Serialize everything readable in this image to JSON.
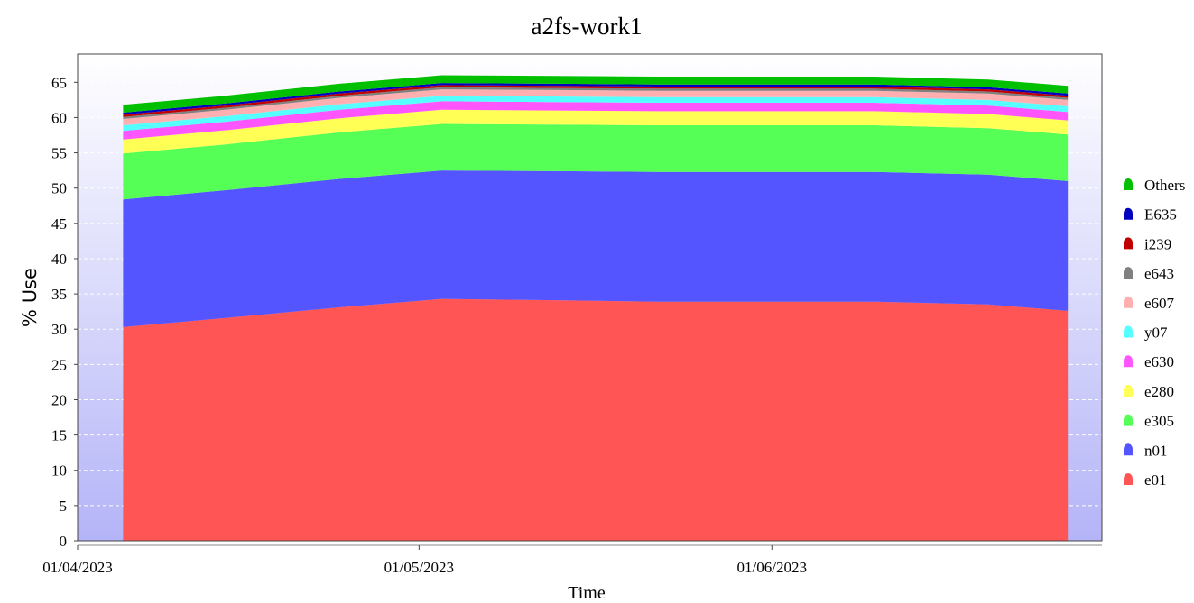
{
  "chart_data": {
    "type": "area",
    "stacked": true,
    "title": "a2fs-work1",
    "xlabel": "Time",
    "ylabel": "% Use",
    "ylim": [
      0,
      69
    ],
    "yticks": [
      0,
      5,
      10,
      15,
      20,
      25,
      30,
      35,
      40,
      45,
      50,
      55,
      60,
      65
    ],
    "xlim": [
      "2023-04-01",
      "2023-06-30"
    ],
    "xticks": [
      {
        "date": "2023-04-01",
        "label": "01/04/2023"
      },
      {
        "date": "2023-05-01",
        "label": "01/05/2023"
      },
      {
        "date": "2023-06-01",
        "label": "01/06/2023"
      }
    ],
    "grid": "horizontal-dashed",
    "legend_position": "right",
    "x": [
      "2023-04-05",
      "2023-04-14",
      "2023-04-24",
      "2023-05-03",
      "2023-05-13",
      "2023-05-22",
      "2023-06-01",
      "2023-06-10",
      "2023-06-20",
      "2023-06-27"
    ],
    "series": [
      {
        "name": "e01",
        "color": "#ff5555",
        "values": [
          30.3,
          31.6,
          33.1,
          34.3,
          34.1,
          33.9,
          33.9,
          33.9,
          33.5,
          32.6
        ]
      },
      {
        "name": "n01",
        "color": "#5555ff",
        "values": [
          18.1,
          18.1,
          18.2,
          18.2,
          18.3,
          18.4,
          18.4,
          18.4,
          18.4,
          18.4
        ]
      },
      {
        "name": "e305",
        "color": "#55ff55",
        "values": [
          6.5,
          6.5,
          6.6,
          6.6,
          6.6,
          6.6,
          6.6,
          6.6,
          6.6,
          6.6
        ]
      },
      {
        "name": "e280",
        "color": "#ffff55",
        "values": [
          2.0,
          2.0,
          2.0,
          2.0,
          2.0,
          2.0,
          2.0,
          2.0,
          2.0,
          2.0
        ]
      },
      {
        "name": "e630",
        "color": "#ff55ff",
        "values": [
          1.2,
          1.2,
          1.2,
          1.2,
          1.2,
          1.2,
          1.2,
          1.2,
          1.2,
          1.2
        ]
      },
      {
        "name": "y07",
        "color": "#55ffff",
        "values": [
          0.8,
          0.8,
          0.8,
          0.8,
          0.8,
          0.8,
          0.8,
          0.8,
          0.8,
          0.8
        ]
      },
      {
        "name": "e607",
        "color": "#ffafaf",
        "values": [
          0.9,
          0.9,
          0.9,
          0.9,
          0.9,
          0.9,
          0.9,
          0.9,
          0.9,
          0.9
        ]
      },
      {
        "name": "e643",
        "color": "#808080",
        "values": [
          0.3,
          0.3,
          0.3,
          0.3,
          0.3,
          0.3,
          0.3,
          0.3,
          0.3,
          0.3
        ]
      },
      {
        "name": "i239",
        "color": "#c00000",
        "values": [
          0.3,
          0.3,
          0.3,
          0.3,
          0.3,
          0.3,
          0.3,
          0.3,
          0.3,
          0.3
        ]
      },
      {
        "name": "E635",
        "color": "#0000c0",
        "values": [
          0.3,
          0.3,
          0.3,
          0.3,
          0.3,
          0.3,
          0.3,
          0.3,
          0.3,
          0.3
        ]
      },
      {
        "name": "Others",
        "color": "#00c000",
        "values": [
          1.1,
          1.1,
          1.1,
          1.1,
          1.1,
          1.1,
          1.1,
          1.1,
          1.1,
          1.1
        ]
      }
    ],
    "legend_order": [
      "Others",
      "E635",
      "i239",
      "e643",
      "e607",
      "y07",
      "e630",
      "e280",
      "e305",
      "n01",
      "e01"
    ],
    "plot_background": {
      "top": "#ffffff",
      "bottom": "#b4b4f8"
    }
  }
}
